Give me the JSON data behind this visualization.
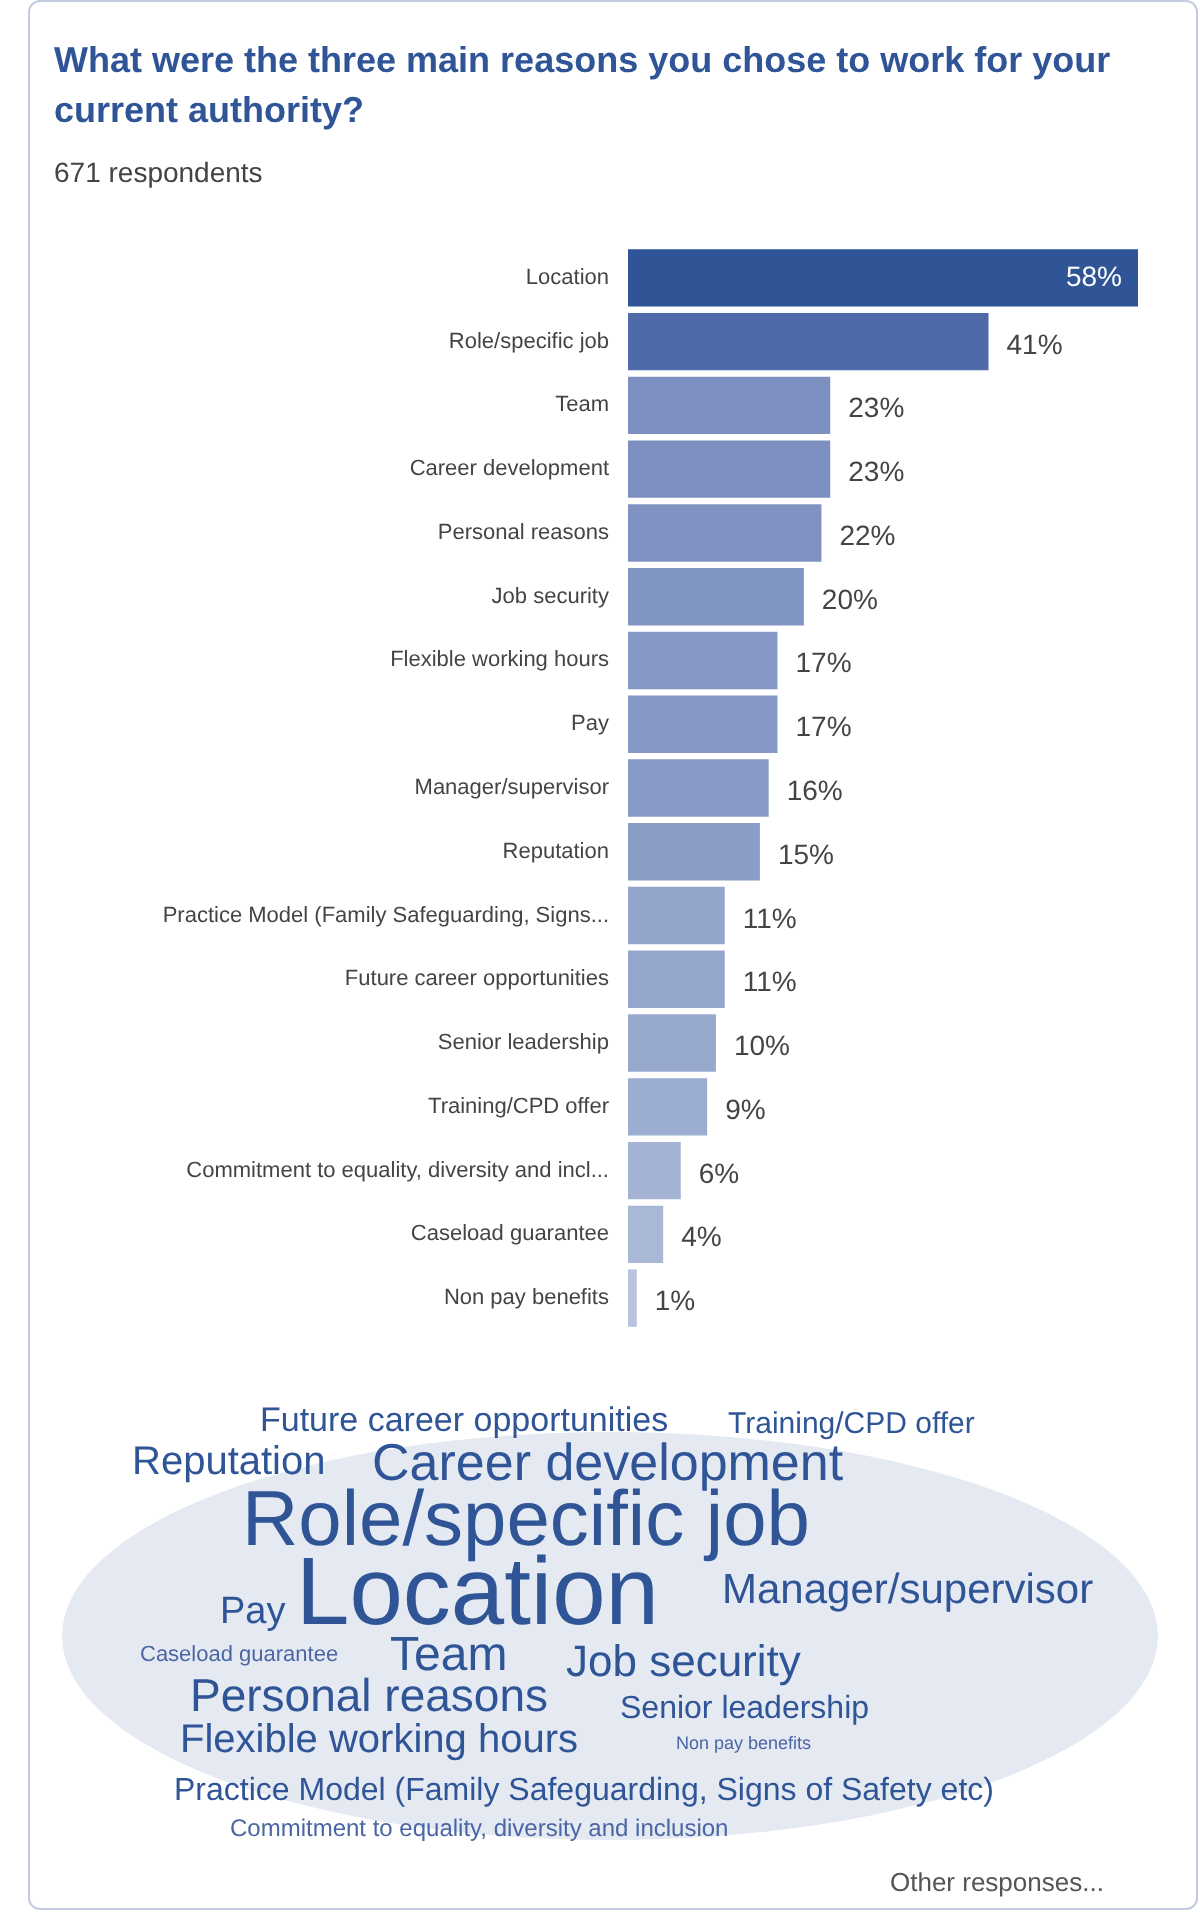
{
  "chart_data": [
    {
      "type": "bar",
      "orientation": "horizontal",
      "title": "What were the three main reasons you chose to work for your current authority?",
      "subtitle": "671 respondents",
      "categories": [
        "Location",
        "Role/specific job",
        "Team",
        "Career development",
        "Personal reasons",
        "Job security",
        "Flexible working hours",
        "Pay",
        "Manager/supervisor",
        "Reputation",
        "Practice Model (Family Safeguarding, Signs...",
        "Future career opportunities",
        "Senior leadership",
        "Training/CPD offer",
        "Commitment to equality, diversity and incl...",
        "Caseload guarantee",
        "Non pay benefits"
      ],
      "values": [
        58,
        41,
        23,
        23,
        22,
        20,
        17,
        17,
        16,
        15,
        11,
        11,
        10,
        9,
        6,
        4,
        1
      ],
      "value_labels": [
        "58%",
        "41%",
        "23%",
        "23%",
        "22%",
        "20%",
        "17%",
        "17%",
        "16%",
        "15%",
        "11%",
        "11%",
        "10%",
        "9%",
        "6%",
        "4%",
        "1%"
      ],
      "colors": [
        "#2f5597",
        "#4e6aa8",
        "#7d90c0",
        "#7d90c0",
        "#7f92c1",
        "#8195c3",
        "#8598c5",
        "#8598c5",
        "#889bc6",
        "#8a9dc7",
        "#94a5cc",
        "#95a6cd",
        "#98a9ce",
        "#9badd0",
        "#a4b3d4",
        "#aab8d7",
        "#b8c4de"
      ]
    },
    {
      "type": "other",
      "annotations": [
        "Future career opportunities",
        "Training/CPD offer",
        "Reputation",
        "Career development",
        "Role/specific job",
        "Location",
        "Manager/supervisor",
        "Pay",
        "Caseload guarantee",
        "Team",
        "Job security",
        "Personal reasons",
        "Senior leadership",
        "Flexible working hours",
        "Non pay benefits",
        "Practice Model (Family Safeguarding, Signs of Safety etc)",
        "Commitment to equality, diversity and inclusion",
        "Other responses..."
      ]
    }
  ]
}
